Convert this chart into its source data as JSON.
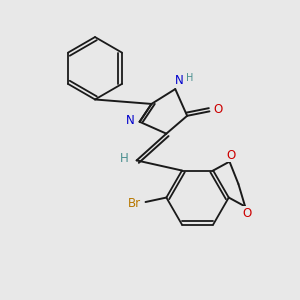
{
  "background_color": "#e8e8e8",
  "bond_color": "#1a1a1a",
  "N_color": "#0000cc",
  "O_color": "#cc0000",
  "Br_color": "#b87800",
  "H_color": "#4a8f8f",
  "figsize": [
    3.0,
    3.0
  ],
  "dpi": 100,
  "xlim": [
    0,
    10
  ],
  "ylim": [
    0,
    10
  ]
}
